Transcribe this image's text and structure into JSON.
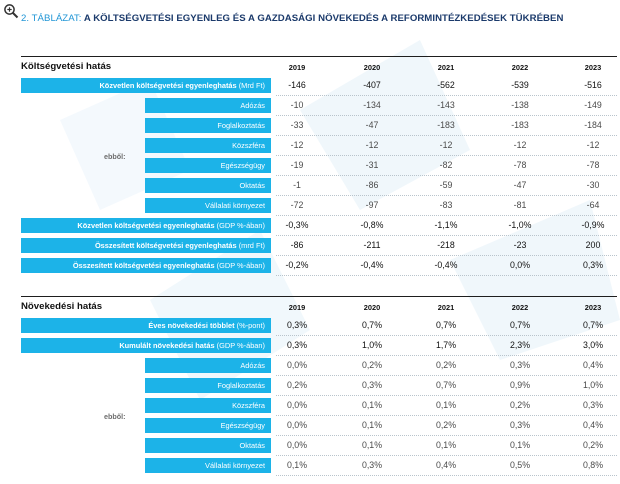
{
  "title": {
    "prefix": "2. TÁBLÁZAT:",
    "main": "A KÖLTSÉGVETÉSI EGYENLEG ÉS A GAZDASÁGI NÖVEKEDÉS A REFORMINTÉZKEDÉSEK TÜKRÉBEN"
  },
  "years": [
    "2019",
    "2020",
    "2021",
    "2022",
    "2023"
  ],
  "ebbol_label": "ebből:",
  "colors": {
    "label_bg": "#1cb3e8",
    "title_accent": "#2196d6",
    "title_main": "#1b3a6b"
  },
  "sections": [
    {
      "title": "Költségvetési hatás",
      "rows": [
        {
          "kind": "main",
          "label": "Közvetlen költségvetési egyenleghatás",
          "unit": "(Mrd Ft)",
          "values": [
            "-146",
            "-407",
            "-562",
            "-539",
            "-516"
          ]
        },
        {
          "kind": "sub",
          "label": "Adózás",
          "values": [
            "-10",
            "-134",
            "-143",
            "-138",
            "-149"
          ]
        },
        {
          "kind": "sub",
          "label": "Foglalkoztatás",
          "values": [
            "-33",
            "-47",
            "-183",
            "-183",
            "-184"
          ]
        },
        {
          "kind": "sub",
          "label": "Közszféra",
          "values": [
            "-12",
            "-12",
            "-12",
            "-12",
            "-12"
          ]
        },
        {
          "kind": "sub",
          "label": "Egészségügy",
          "values": [
            "-19",
            "-31",
            "-82",
            "-78",
            "-78"
          ]
        },
        {
          "kind": "sub",
          "label": "Oktatás",
          "values": [
            "-1",
            "-86",
            "-59",
            "-47",
            "-30"
          ]
        },
        {
          "kind": "sub",
          "label": "Vállalati környezet",
          "values": [
            "-72",
            "-97",
            "-83",
            "-81",
            "-64"
          ]
        },
        {
          "kind": "main",
          "label": "Közvetlen költségvetési egyenleghatás",
          "unit": "(GDP %-ában)",
          "values": [
            "-0,3%",
            "-0,8%",
            "-1,1%",
            "-1,0%",
            "-0,9%"
          ]
        },
        {
          "kind": "main",
          "label": "Összesített költségvetési egyenleghatás",
          "unit": "(mrd Ft)",
          "values": [
            "-86",
            "-211",
            "-218",
            "-23",
            "200"
          ]
        },
        {
          "kind": "main",
          "label": "Összesített költségvetési egyenleghatás",
          "unit": "(GDP %-ában)",
          "values": [
            "-0,2%",
            "-0,4%",
            "-0,4%",
            "0,0%",
            "0,3%"
          ]
        }
      ]
    },
    {
      "title": "Növekedési hatás",
      "rows": [
        {
          "kind": "main",
          "label": "Éves növekedési többlet",
          "unit": "(%-pont)",
          "values": [
            "0,3%",
            "0,7%",
            "0,7%",
            "0,7%",
            "0,7%"
          ]
        },
        {
          "kind": "main",
          "label": "Kumulált növekedési hatás",
          "unit": "(GDP %-ában)",
          "values": [
            "0,3%",
            "1,0%",
            "1,7%",
            "2,3%",
            "3,0%"
          ]
        },
        {
          "kind": "sub",
          "label": "Adózás",
          "values": [
            "0,0%",
            "0,2%",
            "0,2%",
            "0,3%",
            "0,4%"
          ]
        },
        {
          "kind": "sub",
          "label": "Foglalkoztatás",
          "values": [
            "0,2%",
            "0,3%",
            "0,7%",
            "0,9%",
            "1,0%"
          ]
        },
        {
          "kind": "sub",
          "label": "Közszféra",
          "values": [
            "0,0%",
            "0,1%",
            "0,1%",
            "0,2%",
            "0,3%"
          ]
        },
        {
          "kind": "sub",
          "label": "Egészségügy",
          "values": [
            "0,0%",
            "0,1%",
            "0,2%",
            "0,3%",
            "0,4%"
          ]
        },
        {
          "kind": "sub",
          "label": "Oktatás",
          "values": [
            "0,0%",
            "0,1%",
            "0,1%",
            "0,1%",
            "0,2%"
          ]
        },
        {
          "kind": "sub",
          "label": "Vállalati környezet",
          "values": [
            "0,1%",
            "0,3%",
            "0,4%",
            "0,5%",
            "0,8%"
          ]
        }
      ]
    }
  ]
}
